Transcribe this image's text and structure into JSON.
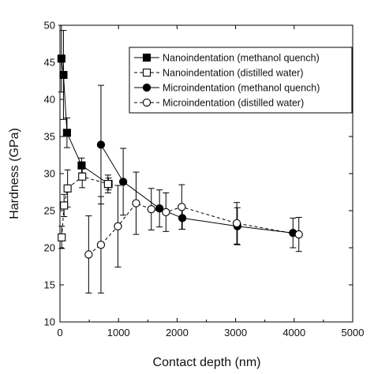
{
  "chart_data": {
    "type": "scatter",
    "title": "",
    "xlabel": "Contact depth (nm)",
    "ylabel": "Hardness (GPa)",
    "xlim": [
      0,
      5000
    ],
    "ylim": [
      10,
      50
    ],
    "xticks": [
      0,
      1000,
      2000,
      3000,
      4000,
      5000
    ],
    "yticks": [
      10,
      15,
      20,
      25,
      30,
      35,
      40,
      45,
      50
    ],
    "xtick_labels": [
      "0",
      "1000",
      "2000",
      "3000",
      "4000",
      "5000"
    ],
    "ytick_labels": [
      "10",
      "15",
      "20",
      "25",
      "30",
      "35",
      "40",
      "45",
      "50"
    ],
    "grid": false,
    "legend_position": "top-right",
    "series": [
      {
        "name": "Nanoindentation (methanol quench)",
        "marker": "filled-square",
        "line": "solid",
        "color": "#000000",
        "x": [
          25,
          60,
          120,
          370,
          830
        ],
        "y": [
          45.5,
          43.3,
          35.5,
          31.1,
          28.6
        ],
        "yerr": [
          4.5,
          6.0,
          2.0,
          1.0,
          0.8
        ]
      },
      {
        "name": "Nanoindentation (distilled water)",
        "marker": "open-square",
        "line": "dashed",
        "color": "#000000",
        "x": [
          30,
          70,
          130,
          380,
          820
        ],
        "y": [
          21.4,
          25.7,
          28.0,
          29.6,
          28.6
        ],
        "yerr": [
          1.5,
          1.5,
          2.5,
          1.5,
          1.2
        ]
      },
      {
        "name": "Microindentation (methanol quench)",
        "marker": "filled-circle",
        "line": "solid",
        "color": "#000000",
        "x": [
          700,
          1080,
          1700,
          2090,
          3030,
          3980
        ],
        "y": [
          33.9,
          28.9,
          25.3,
          24.0,
          22.9,
          22.0
        ],
        "yerr": [
          8.0,
          4.5,
          2.5,
          1.5,
          2.5,
          2.0
        ]
      },
      {
        "name": "Microindentation (distilled water)",
        "marker": "open-circle",
        "line": "dashed",
        "color": "#000000",
        "x": [
          490,
          700,
          990,
          1300,
          1560,
          1810,
          2080,
          3020,
          4080
        ],
        "y": [
          19.1,
          20.4,
          22.9,
          26.0,
          25.2,
          24.8,
          25.5,
          23.3,
          21.8
        ],
        "yerr": [
          5.2,
          6.5,
          5.5,
          4.2,
          2.8,
          2.6,
          3.0,
          2.8,
          2.3
        ]
      }
    ]
  }
}
